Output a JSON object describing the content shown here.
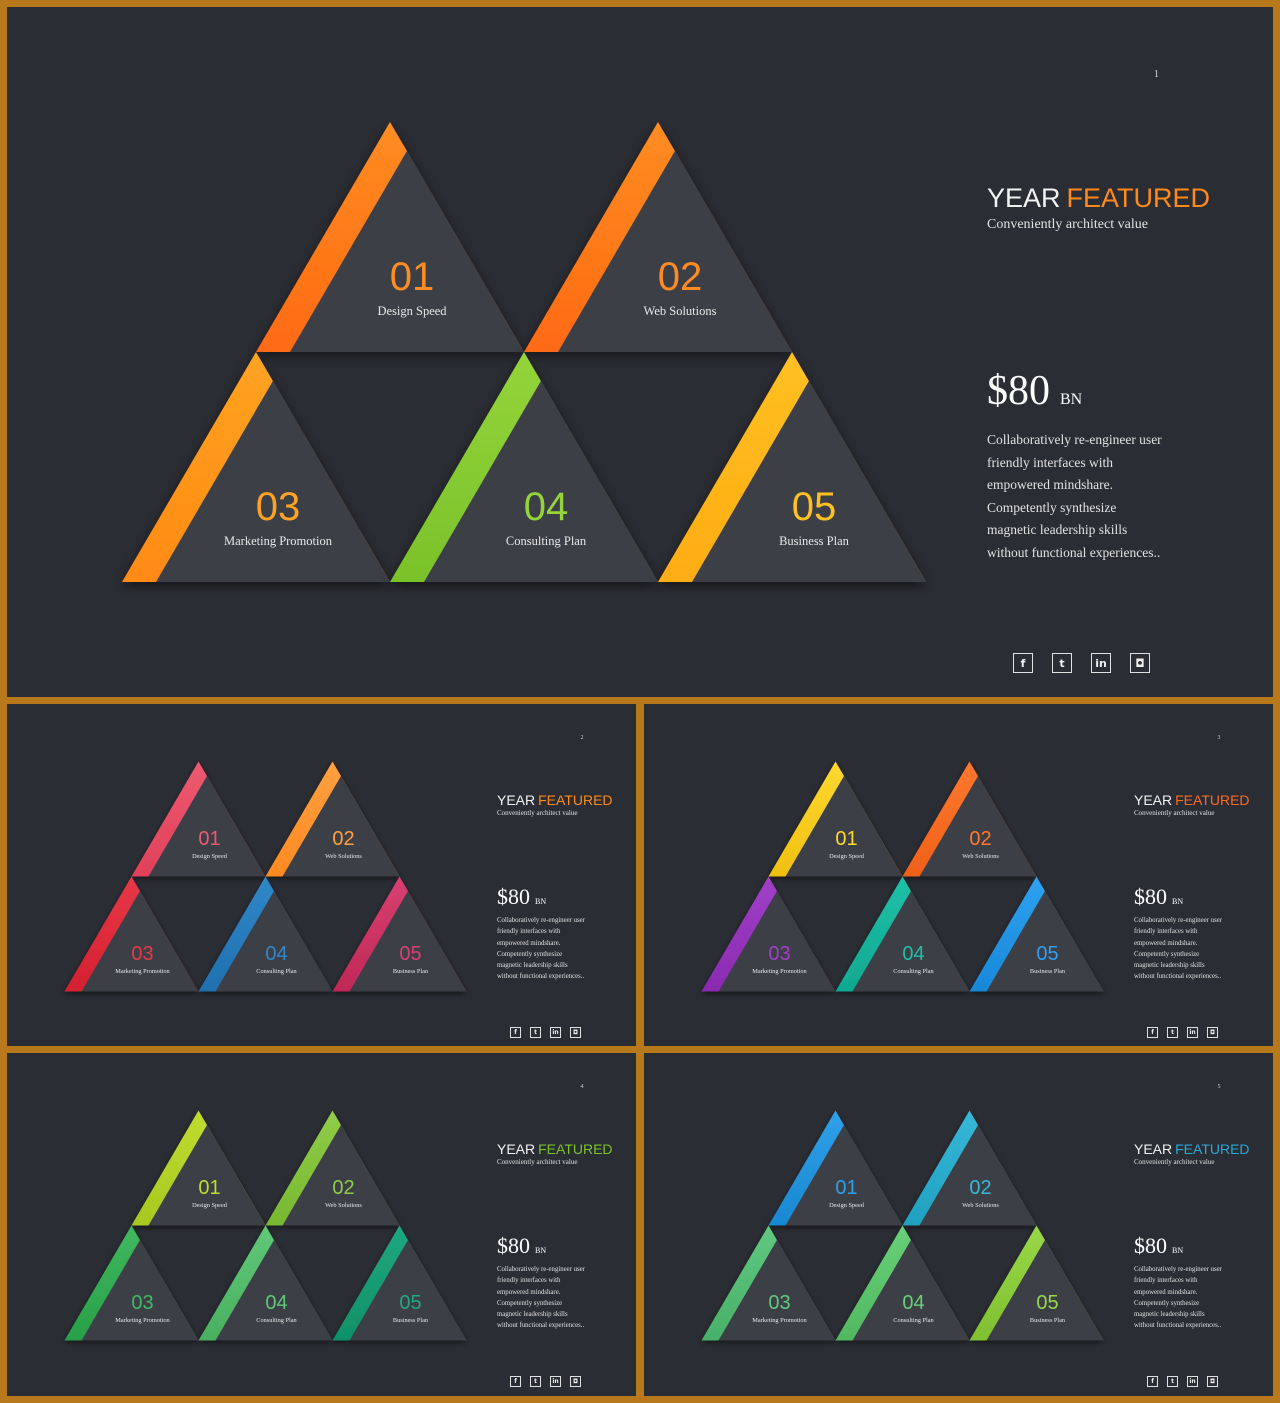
{
  "slides": [
    {
      "page": "1",
      "heading_a": "YEAR",
      "heading_b": "FEATURED",
      "accent": "#ff8a1a",
      "subtitle": "Conveniently architect value",
      "price": "$80",
      "unit": "BN",
      "description": "Collaboratively re-engineer user friendly interfaces with empowered mindshare. Competently synthesize magnetic leadership skills without functional experiences..",
      "items": [
        {
          "num": "01",
          "label": "Design Speed",
          "color": "#ff6a12",
          "color2": "#ff8c22"
        },
        {
          "num": "02",
          "label": "Web Solutions",
          "color": "#ff6a12",
          "color2": "#ff8c22"
        },
        {
          "num": "03",
          "label": "Marketing Promotion",
          "color": "#ff8a12",
          "color2": "#ffa322"
        },
        {
          "num": "04",
          "label": "Consulting Plan",
          "color": "#7ac22a",
          "color2": "#94d43a"
        },
        {
          "num": "05",
          "label": "Business Plan",
          "color": "#ffac12",
          "color2": "#ffc022"
        }
      ],
      "icons": [
        "facebook-icon",
        "twitter-icon",
        "linkedin-icon",
        "instagram-icon"
      ]
    },
    {
      "page": "2",
      "heading_a": "YEAR",
      "heading_b": "FEATURED",
      "accent": "#ff8a1a",
      "subtitle": "Conveniently architect value",
      "price": "$80",
      "unit": "BN",
      "description": "Collaboratively re-engineer user friendly interfaces with empowered mindshare. Competently synthesize magnetic leadership skills without functional experiences..",
      "items": [
        {
          "num": "01",
          "label": "Design Speed",
          "color": "#e0405a",
          "color2": "#ee5a70"
        },
        {
          "num": "02",
          "label": "Web Solutions",
          "color": "#ff8a22",
          "color2": "#ffa040"
        },
        {
          "num": "03",
          "label": "Marketing Promotion",
          "color": "#d42030",
          "color2": "#e83848"
        },
        {
          "num": "04",
          "label": "Consulting Plan",
          "color": "#2070b0",
          "color2": "#3088c8"
        },
        {
          "num": "05",
          "label": "Business Plan",
          "color": "#c02858",
          "color2": "#d84070"
        }
      ],
      "icons": [
        "facebook-icon",
        "twitter-icon",
        "linkedin-icon",
        "instagram-icon"
      ]
    },
    {
      "page": "3",
      "heading_a": "YEAR",
      "heading_b": "FEATURED",
      "accent": "#ff6a22",
      "subtitle": "Conveniently architect value",
      "price": "$80",
      "unit": "BN",
      "description": "Collaboratively re-engineer user friendly interfaces with empowered mindshare. Competently synthesize magnetic leadership skills without functional experiences..",
      "items": [
        {
          "num": "01",
          "label": "Design Speed",
          "color": "#f0c010",
          "color2": "#ffd830"
        },
        {
          "num": "02",
          "label": "Web Solutions",
          "color": "#f06018",
          "color2": "#ff7830"
        },
        {
          "num": "03",
          "label": "Marketing Promotion",
          "color": "#8a2ab0",
          "color2": "#a040c8"
        },
        {
          "num": "04",
          "label": "Consulting Plan",
          "color": "#10a890",
          "color2": "#20c0a8"
        },
        {
          "num": "05",
          "label": "Business Plan",
          "color": "#1888d8",
          "color2": "#30a0f0"
        }
      ],
      "icons": [
        "facebook-icon",
        "twitter-icon",
        "linkedin-icon",
        "instagram-icon"
      ]
    },
    {
      "page": "4",
      "heading_a": "YEAR",
      "heading_b": "FEATURED",
      "accent": "#7ac22a",
      "subtitle": "Conveniently architect value",
      "price": "$80",
      "unit": "BN",
      "description": "Collaboratively re-engineer user friendly interfaces with empowered mindshare. Competently synthesize magnetic leadership skills without functional experiences..",
      "items": [
        {
          "num": "01",
          "label": "Design Speed",
          "color": "#a8c820",
          "color2": "#c0dc30"
        },
        {
          "num": "02",
          "label": "Web Solutions",
          "color": "#78b830",
          "color2": "#90cc48"
        },
        {
          "num": "03",
          "label": "Marketing Promotion",
          "color": "#28a048",
          "color2": "#40b860"
        },
        {
          "num": "04",
          "label": "Consulting Plan",
          "color": "#48b060",
          "color2": "#60c878"
        },
        {
          "num": "05",
          "label": "Business Plan",
          "color": "#109068",
          "color2": "#20a880"
        }
      ],
      "icons": [
        "facebook-icon",
        "twitter-icon",
        "linkedin-icon",
        "instagram-icon"
      ]
    },
    {
      "page": "5",
      "heading_a": "YEAR",
      "heading_b": "FEATURED",
      "accent": "#2aa8d8",
      "subtitle": "Conveniently architect value",
      "price": "$80",
      "unit": "BN",
      "description": "Collaboratively re-engineer user friendly interfaces with empowered mindshare. Competently synthesize magnetic leadership skills without functional experiences..",
      "items": [
        {
          "num": "01",
          "label": "Design Speed",
          "color": "#1888d0",
          "color2": "#30a0e8"
        },
        {
          "num": "02",
          "label": "Web Solutions",
          "color": "#20a0c0",
          "color2": "#38b8d8"
        },
        {
          "num": "03",
          "label": "Marketing Promotion",
          "color": "#48b068",
          "color2": "#60c880"
        },
        {
          "num": "04",
          "label": "Consulting Plan",
          "color": "#50b860",
          "color2": "#68d078"
        },
        {
          "num": "05",
          "label": "Business Plan",
          "color": "#80c030",
          "color2": "#98d848"
        }
      ],
      "icons": [
        "facebook-icon",
        "twitter-icon",
        "linkedin-icon",
        "instagram-icon"
      ]
    }
  ]
}
